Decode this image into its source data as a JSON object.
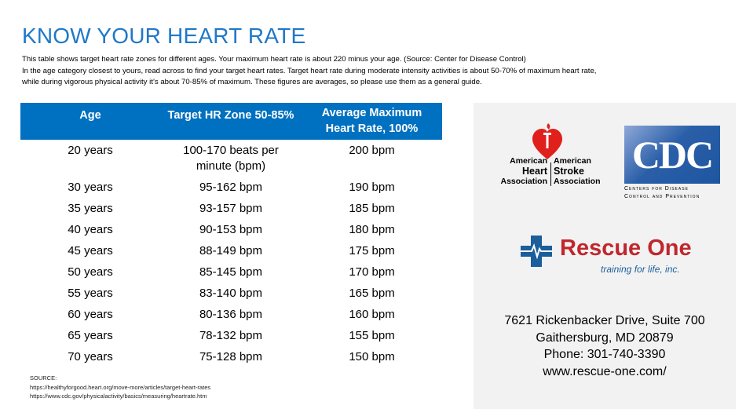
{
  "title": "KNOW YOUR HEART RATE",
  "description": [
    "This table shows target heart rate zones for different ages. Your maximum heart rate is about 220 minus your age. (Source: Center for Disease Control)",
    "In the age category closest to yours, read across to find your target heart rates. Target heart rate during moderate intensity activities is about 50-70% of maximum heart rate,",
    "while during vigorous physical activity it’s about 70-85% of maximum.   These figures are averages, so please use them as a general guide."
  ],
  "table": {
    "headers": [
      "Age",
      "Target HR Zone 50-85%",
      "Average Maximum Heart Rate, 100%"
    ],
    "rows": [
      [
        "20 years",
        "100-170 beats per minute (bpm)",
        "200 bpm"
      ],
      [
        "30 years",
        "95-162 bpm",
        "190 bpm"
      ],
      [
        "35 years",
        "93-157 bpm",
        "185 bpm"
      ],
      [
        "40 years",
        "90-153 bpm",
        "180 bpm"
      ],
      [
        "45 years",
        "88-149 bpm",
        "175 bpm"
      ],
      [
        "50 years",
        "85-145 bpm",
        "170 bpm"
      ],
      [
        "55 years",
        "83-140 bpm",
        "165 bpm"
      ],
      [
        "60 years",
        "80-136 bpm",
        "160 bpm"
      ],
      [
        "65 years",
        "78-132 bpm",
        "155 bpm"
      ],
      [
        "70 years",
        "75-128 bpm",
        "150 bpm"
      ]
    ],
    "header_color": "#0070c0"
  },
  "source": {
    "label": "SOURCE:",
    "links": [
      "https://healthyforgood.heart.org/move-more/articles/target-heart-rates",
      "https://www.cdc.gov/physicalactivity/basics/measuring/heartrate.htm"
    ]
  },
  "logos": {
    "aha": {
      "left": [
        "American",
        "Heart",
        "Association"
      ],
      "right": [
        "American",
        "Stroke",
        "Association"
      ]
    },
    "cdc": {
      "mark": "CDC",
      "line1": "Centers for Disease",
      "line2": "Control and Prevention"
    },
    "rescue": {
      "name": "Rescue One",
      "tagline": "training for life, inc."
    }
  },
  "contact": {
    "address1": "7621 Rickenbacker Drive, Suite 700",
    "address2": "Gaithersburg, MD 20879",
    "phone": "Phone: 301-740-3390",
    "web": "www.rescue-one.com/"
  }
}
